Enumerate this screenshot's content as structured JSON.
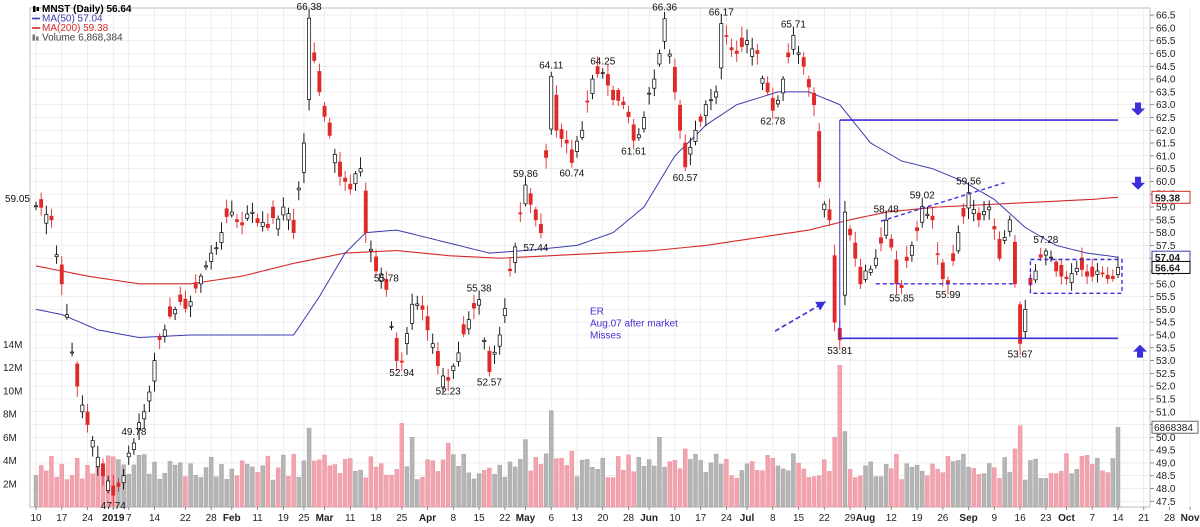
{
  "chart_data": {
    "type": "candlestick",
    "title": "MNST (Daily) 56.64",
    "legend": [
      {
        "label": "MNST (Daily) 56.64",
        "color": "#000000",
        "icon": "candle-icon"
      },
      {
        "label": "MA(50) 57.04",
        "color": "#3b3bb0",
        "icon": "line-icon"
      },
      {
        "label": "MA(200) 59.38",
        "color": "#d42a2a",
        "icon": "line-icon"
      },
      {
        "label": "Volume 6,868,384",
        "color": "#888888",
        "icon": "bar-icon"
      }
    ],
    "y_range": [
      47.2,
      66.7
    ],
    "y_ticks": [
      "66.5",
      "66.0",
      "65.5",
      "65.0",
      "64.5",
      "64.0",
      "63.5",
      "63.0",
      "62.5",
      "62.0",
      "61.5",
      "61.0",
      "60.5",
      "60.0",
      "59.5",
      "59.0",
      "58.5",
      "58.0",
      "57.5",
      "57.0",
      "56.5",
      "56.0",
      "55.5",
      "55.0",
      "54.5",
      "54.0",
      "53.5",
      "53.0",
      "52.5",
      "52.0",
      "51.5",
      "51.0",
      "50.5",
      "50.0",
      "49.5",
      "49.0",
      "48.5",
      "48.0",
      "47.5"
    ],
    "volume_ticks": [
      "14M",
      "12M",
      "10M",
      "8M",
      "6M",
      "4M",
      "2M"
    ],
    "volume_range": [
      0,
      16000000
    ],
    "x_labels": [
      "10",
      "17",
      "24",
      "2019",
      "7",
      "14",
      "22",
      "28",
      "Feb",
      "11",
      "19",
      "25",
      "Mar",
      "11",
      "18",
      "25",
      "Apr",
      "8",
      "15",
      "22",
      "May",
      "6",
      "13",
      "20",
      "28",
      "Jun",
      "10",
      "17",
      "24",
      "Jul",
      "8",
      "15",
      "22",
      "29",
      "Aug",
      "12",
      "19",
      "26",
      "Sep",
      "9",
      "16",
      "23",
      "Oct",
      "7",
      "14",
      "21",
      "28",
      "Nov"
    ],
    "x_label_index": [
      0,
      5,
      10,
      15,
      18,
      23,
      29,
      34,
      38,
      43,
      48,
      52,
      56,
      61,
      66,
      71,
      76,
      81,
      86,
      91,
      95,
      100,
      105,
      110,
      115,
      119,
      124,
      129,
      134,
      138,
      143,
      148,
      153,
      158,
      161,
      166,
      171,
      176,
      181,
      186,
      191,
      196,
      200,
      205,
      210,
      215,
      220,
      224
    ],
    "x_bold": [
      "2019",
      "Feb",
      "Mar",
      "Apr",
      "May",
      "Jun",
      "Jul",
      "Aug",
      "Sep",
      "Oct",
      "Nov"
    ],
    "price_anchors": [
      [
        0,
        59.05
      ],
      [
        3,
        58.5
      ],
      [
        5,
        56.0
      ],
      [
        8,
        52.0
      ],
      [
        10,
        50.5
      ],
      [
        13,
        48.5
      ],
      [
        15,
        47.74
      ],
      [
        17,
        48.5
      ],
      [
        19,
        49.78
      ],
      [
        21,
        51.0
      ],
      [
        23,
        53.0
      ],
      [
        25,
        54.2
      ],
      [
        27,
        55.0
      ],
      [
        30,
        55.3
      ],
      [
        32,
        56.3
      ],
      [
        34,
        57.2
      ],
      [
        36,
        58.0
      ],
      [
        38,
        58.8
      ],
      [
        40,
        58.3
      ],
      [
        42,
        58.8
      ],
      [
        45,
        58.2
      ],
      [
        48,
        59.0
      ],
      [
        50,
        58.0
      ],
      [
        52,
        61.5
      ],
      [
        53,
        66.38
      ],
      [
        55,
        63.5
      ],
      [
        57,
        61.8
      ],
      [
        59,
        60.2
      ],
      [
        60,
        60.0
      ],
      [
        61,
        59.7
      ],
      [
        62,
        60.3
      ],
      [
        63,
        60.5
      ],
      [
        64,
        58.0
      ],
      [
        66,
        56.5
      ],
      [
        68,
        55.78
      ],
      [
        70,
        53.0
      ],
      [
        71,
        52.94
      ],
      [
        73,
        55.2
      ],
      [
        75,
        55.0
      ],
      [
        76,
        54.2
      ],
      [
        78,
        52.8
      ],
      [
        80,
        52.23
      ],
      [
        82,
        53.3
      ],
      [
        84,
        54.6
      ],
      [
        86,
        55.38
      ],
      [
        88,
        52.57
      ],
      [
        90,
        54.0
      ],
      [
        93,
        57.44
      ],
      [
        95,
        59.86
      ],
      [
        97,
        58.5
      ],
      [
        98,
        58.0
      ],
      [
        100,
        64.11
      ],
      [
        101,
        62.0
      ],
      [
        103,
        61.5
      ],
      [
        104,
        60.74
      ],
      [
        106,
        62.0
      ],
      [
        108,
        64.0
      ],
      [
        110,
        64.25
      ],
      [
        112,
        63.2
      ],
      [
        114,
        63.0
      ],
      [
        116,
        61.61
      ],
      [
        118,
        62.5
      ],
      [
        120,
        64.0
      ],
      [
        122,
        66.36
      ],
      [
        124,
        63.5
      ],
      [
        125,
        62.0
      ],
      [
        126,
        60.57
      ],
      [
        128,
        62.0
      ],
      [
        130,
        63.0
      ],
      [
        132,
        63.5
      ],
      [
        133,
        66.17
      ],
      [
        136,
        65.0
      ],
      [
        138,
        65.5
      ],
      [
        140,
        65.0
      ],
      [
        142,
        63.5
      ],
      [
        143,
        62.78
      ],
      [
        145,
        64.0
      ],
      [
        147,
        65.71
      ],
      [
        149,
        64.5
      ],
      [
        151,
        63.0
      ],
      [
        152,
        60.0
      ],
      [
        154,
        58.5
      ],
      [
        155,
        54.5
      ],
      [
        156,
        53.81
      ],
      [
        157,
        58.8
      ],
      [
        159,
        57.0
      ],
      [
        160,
        56.0
      ],
      [
        161,
        56.5
      ],
      [
        163,
        57.0
      ],
      [
        165,
        58.48
      ],
      [
        167,
        56.0
      ],
      [
        168,
        55.85
      ],
      [
        170,
        57.5
      ],
      [
        172,
        59.02
      ],
      [
        174,
        58.5
      ],
      [
        176,
        56.2
      ],
      [
        177,
        55.99
      ],
      [
        179,
        58.0
      ],
      [
        181,
        59.56
      ],
      [
        183,
        58.5
      ],
      [
        185,
        59.0
      ],
      [
        187,
        57.0
      ],
      [
        189,
        58.5
      ],
      [
        190,
        56.0
      ],
      [
        191,
        53.67
      ],
      [
        192,
        55.0
      ],
      [
        194,
        56.5
      ],
      [
        196,
        57.28
      ],
      [
        198,
        56.5
      ],
      [
        200,
        56.2
      ],
      [
        202,
        56.6
      ],
      [
        204,
        56.3
      ],
      [
        206,
        56.5
      ],
      [
        208,
        56.2
      ],
      [
        210,
        56.64
      ]
    ],
    "ma50_anchors": [
      [
        0,
        55.0
      ],
      [
        5,
        54.8
      ],
      [
        12,
        54.2
      ],
      [
        20,
        53.9
      ],
      [
        30,
        54.0
      ],
      [
        40,
        54.0
      ],
      [
        50,
        54.0
      ],
      [
        55,
        55.5
      ],
      [
        60,
        57.2
      ],
      [
        64,
        58.0
      ],
      [
        70,
        58.1
      ],
      [
        80,
        57.6
      ],
      [
        88,
        57.2
      ],
      [
        95,
        57.3
      ],
      [
        105,
        57.5
      ],
      [
        112,
        58.0
      ],
      [
        118,
        59.0
      ],
      [
        124,
        61.0
      ],
      [
        130,
        62.2
      ],
      [
        136,
        63.0
      ],
      [
        144,
        63.5
      ],
      [
        150,
        63.5
      ],
      [
        156,
        63.0
      ],
      [
        162,
        61.5
      ],
      [
        168,
        60.8
      ],
      [
        174,
        60.5
      ],
      [
        180,
        60.0
      ],
      [
        186,
        59.3
      ],
      [
        192,
        58.2
      ],
      [
        198,
        57.5
      ],
      [
        204,
        57.2
      ],
      [
        210,
        57.04
      ]
    ],
    "ma200_anchors": [
      [
        0,
        56.7
      ],
      [
        10,
        56.3
      ],
      [
        20,
        56.0
      ],
      [
        30,
        56.0
      ],
      [
        40,
        56.3
      ],
      [
        50,
        56.8
      ],
      [
        60,
        57.2
      ],
      [
        70,
        57.3
      ],
      [
        80,
        57.1
      ],
      [
        90,
        57.0
      ],
      [
        100,
        57.1
      ],
      [
        110,
        57.2
      ],
      [
        120,
        57.3
      ],
      [
        130,
        57.5
      ],
      [
        140,
        57.8
      ],
      [
        150,
        58.1
      ],
      [
        158,
        58.5
      ],
      [
        165,
        58.8
      ],
      [
        175,
        59.0
      ],
      [
        185,
        59.1
      ],
      [
        195,
        59.2
      ],
      [
        205,
        59.3
      ],
      [
        210,
        59.38
      ]
    ],
    "volume_spikes": [
      [
        53,
        6.8
      ],
      [
        71,
        7.2
      ],
      [
        73,
        6.0
      ],
      [
        80,
        5.5
      ],
      [
        95,
        5.8
      ],
      [
        100,
        8.3
      ],
      [
        104,
        4.8
      ],
      [
        121,
        6.0
      ],
      [
        126,
        5.0
      ],
      [
        155,
        6.0
      ],
      [
        156,
        12.2
      ],
      [
        157,
        6.5
      ],
      [
        190,
        5.0
      ],
      [
        191,
        7.0
      ],
      [
        210,
        6.9
      ]
    ],
    "last_volume": 6868384,
    "annotations": [
      {
        "text": "59.05",
        "x": 0,
        "price": 59.05,
        "pos": "left"
      },
      {
        "text": "47.74",
        "x": 15,
        "price": 47.74,
        "pos": "below"
      },
      {
        "text": "49.78",
        "x": 19,
        "price": 49.78,
        "pos": "above"
      },
      {
        "text": "66.38",
        "x": 53,
        "price": 66.38,
        "pos": "above"
      },
      {
        "text": "55.78",
        "x": 68,
        "price": 55.78,
        "pos": "above"
      },
      {
        "text": "52.94",
        "x": 71,
        "price": 52.94,
        "pos": "below"
      },
      {
        "text": "52.23",
        "x": 80,
        "price": 52.23,
        "pos": "below"
      },
      {
        "text": "55.38",
        "x": 86,
        "price": 55.38,
        "pos": "above"
      },
      {
        "text": "52.57",
        "x": 88,
        "price": 52.57,
        "pos": "below"
      },
      {
        "text": "57.44",
        "x": 94,
        "price": 57.44,
        "pos": "right"
      },
      {
        "text": "59.86",
        "x": 95,
        "price": 59.86,
        "pos": "above"
      },
      {
        "text": "64.11",
        "x": 100,
        "price": 64.11,
        "pos": "above"
      },
      {
        "text": "60.74",
        "x": 104,
        "price": 60.74,
        "pos": "below"
      },
      {
        "text": "64.25",
        "x": 110,
        "price": 64.25,
        "pos": "above"
      },
      {
        "text": "61.61",
        "x": 116,
        "price": 61.61,
        "pos": "below"
      },
      {
        "text": "66.36",
        "x": 122,
        "price": 66.36,
        "pos": "above"
      },
      {
        "text": "60.57",
        "x": 126,
        "price": 60.57,
        "pos": "below"
      },
      {
        "text": "66.17",
        "x": 133,
        "price": 66.17,
        "pos": "above"
      },
      {
        "text": "62.78",
        "x": 143,
        "price": 62.78,
        "pos": "below"
      },
      {
        "text": "65.71",
        "x": 147,
        "price": 65.71,
        "pos": "above"
      },
      {
        "text": "53.81",
        "x": 156,
        "price": 53.81,
        "pos": "below"
      },
      {
        "text": "58.48",
        "x": 165,
        "price": 58.48,
        "pos": "above"
      },
      {
        "text": "55.85",
        "x": 168,
        "price": 55.85,
        "pos": "below"
      },
      {
        "text": "59.02",
        "x": 172,
        "price": 59.02,
        "pos": "above"
      },
      {
        "text": "55.99",
        "x": 177,
        "price": 55.99,
        "pos": "below"
      },
      {
        "text": "59.56",
        "x": 181,
        "price": 59.56,
        "pos": "above"
      },
      {
        "text": "53.67",
        "x": 191,
        "price": 53.67,
        "pos": "below"
      },
      {
        "text": "57.28",
        "x": 196,
        "price": 57.28,
        "pos": "above"
      }
    ],
    "note_lines": [
      "ER",
      "Aug.07 after market",
      "Misses"
    ],
    "price_tags": [
      {
        "text": "59.38",
        "price": 59.38,
        "color": "#d42a2a"
      },
      {
        "text": "57.04",
        "price": 57.04,
        "color": "#3b3bb0"
      },
      {
        "text": "56.64",
        "price": 56.64,
        "color": "#000000"
      }
    ],
    "volume_tag": {
      "text": "6868384"
    }
  },
  "colors": {
    "up_body": "#ffffff",
    "up_edge": "#000000",
    "down": "#e02a2a",
    "vol_up": "#b5b5b5",
    "vol_down": "#f3a3ad",
    "ma50": "#3b3bb0",
    "ma200": "#d42a2a",
    "markup": "#3b2fdc",
    "grid": "#e3e3e3"
  }
}
